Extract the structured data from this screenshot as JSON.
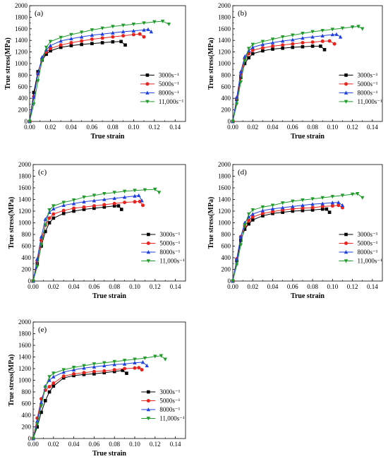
{
  "figure": {
    "xlabel": "True strain",
    "ylabel": "True stress(MPa)"
  },
  "legend": [
    {
      "name": "3000s⁻¹",
      "color": "#000000",
      "marker": "square"
    },
    {
      "name": "5000s⁻¹",
      "color": "#e8231e",
      "marker": "circle"
    },
    {
      "name": "8000s⁻¹",
      "color": "#1f3fe0",
      "marker": "triangle"
    },
    {
      "name": "11,000s⁻¹",
      "color": "#1f9b2a",
      "marker": "triangle-down"
    }
  ],
  "chart_data": [
    {
      "type": "line",
      "panel": "(a)",
      "xlabel": "True strain",
      "ylabel": "True stress(MPa)",
      "xlim": [
        0,
        0.15
      ],
      "ylim": [
        0,
        2000
      ],
      "x_ticks": [
        "0.00",
        "0.02",
        "0.04",
        "0.06",
        "0.08",
        "0.10",
        "0.12",
        "0.14"
      ],
      "y_ticks": [
        "0",
        "200",
        "400",
        "600",
        "800",
        "1000",
        "1200",
        "1400",
        "1600",
        "1800",
        "2000"
      ],
      "series": [
        {
          "name": "3000s⁻¹",
          "x": [
            0,
            0.004,
            0.008,
            0.012,
            0.016,
            0.02,
            0.03,
            0.04,
            0.05,
            0.06,
            0.07,
            0.08,
            0.088,
            0.092
          ],
          "y": [
            0,
            500,
            860,
            1060,
            1160,
            1220,
            1280,
            1310,
            1330,
            1345,
            1360,
            1375,
            1380,
            1320
          ]
        },
        {
          "name": "5000s⁻¹",
          "x": [
            0,
            0.004,
            0.008,
            0.012,
            0.016,
            0.02,
            0.03,
            0.04,
            0.05,
            0.06,
            0.07,
            0.08,
            0.09,
            0.1,
            0.106,
            0.11
          ],
          "y": [
            0,
            430,
            820,
            1080,
            1200,
            1260,
            1320,
            1360,
            1390,
            1420,
            1440,
            1460,
            1480,
            1500,
            1510,
            1460
          ]
        },
        {
          "name": "8000s⁻¹",
          "x": [
            0,
            0.004,
            0.008,
            0.012,
            0.016,
            0.02,
            0.03,
            0.04,
            0.05,
            0.06,
            0.07,
            0.08,
            0.09,
            0.1,
            0.11,
            0.114,
            0.117
          ],
          "y": [
            0,
            420,
            830,
            1110,
            1240,
            1310,
            1390,
            1430,
            1460,
            1490,
            1510,
            1530,
            1550,
            1565,
            1580,
            1590,
            1550
          ]
        },
        {
          "name": "11,000s⁻¹",
          "x": [
            0,
            0.004,
            0.008,
            0.012,
            0.016,
            0.02,
            0.03,
            0.04,
            0.05,
            0.06,
            0.07,
            0.08,
            0.09,
            0.1,
            0.11,
            0.12,
            0.128,
            0.134
          ],
          "y": [
            0,
            300,
            700,
            1050,
            1280,
            1380,
            1450,
            1500,
            1540,
            1580,
            1610,
            1640,
            1660,
            1680,
            1700,
            1720,
            1730,
            1680
          ]
        }
      ]
    },
    {
      "type": "line",
      "panel": "(b)",
      "xlabel": "True strain",
      "ylabel": "True stress(MPa)",
      "xlim": [
        0,
        0.15
      ],
      "ylim": [
        0,
        2000
      ],
      "x_ticks": [
        "0.00",
        "0.02",
        "0.04",
        "0.06",
        "0.08",
        "0.10",
        "0.12",
        "0.14"
      ],
      "y_ticks": [
        "0",
        "200",
        "400",
        "600",
        "800",
        "1000",
        "1200",
        "1400",
        "1600",
        "1800",
        "2000"
      ],
      "series": [
        {
          "name": "3000s⁻¹",
          "x": [
            0,
            0.004,
            0.008,
            0.012,
            0.016,
            0.02,
            0.03,
            0.04,
            0.05,
            0.06,
            0.07,
            0.08,
            0.088,
            0.092
          ],
          "y": [
            0,
            380,
            760,
            1000,
            1100,
            1170,
            1220,
            1250,
            1265,
            1280,
            1290,
            1300,
            1300,
            1240
          ]
        },
        {
          "name": "5000s⁻¹",
          "x": [
            0,
            0.004,
            0.008,
            0.012,
            0.016,
            0.02,
            0.03,
            0.04,
            0.05,
            0.06,
            0.07,
            0.08,
            0.09,
            0.097,
            0.102
          ],
          "y": [
            0,
            400,
            800,
            1080,
            1170,
            1230,
            1270,
            1300,
            1320,
            1340,
            1360,
            1370,
            1385,
            1390,
            1340
          ]
        },
        {
          "name": "8000s⁻¹",
          "x": [
            0,
            0.004,
            0.008,
            0.012,
            0.016,
            0.02,
            0.03,
            0.04,
            0.05,
            0.06,
            0.07,
            0.08,
            0.09,
            0.1,
            0.104,
            0.108
          ],
          "y": [
            0,
            420,
            860,
            1120,
            1220,
            1280,
            1330,
            1360,
            1390,
            1410,
            1440,
            1460,
            1480,
            1500,
            1505,
            1460
          ]
        },
        {
          "name": "11,000s⁻¹",
          "x": [
            0,
            0.004,
            0.008,
            0.012,
            0.016,
            0.02,
            0.03,
            0.04,
            0.05,
            0.06,
            0.07,
            0.08,
            0.09,
            0.1,
            0.11,
            0.12,
            0.126,
            0.13
          ],
          "y": [
            0,
            300,
            680,
            1050,
            1260,
            1330,
            1380,
            1420,
            1460,
            1490,
            1520,
            1550,
            1570,
            1590,
            1610,
            1630,
            1640,
            1600
          ]
        }
      ]
    },
    {
      "type": "line",
      "panel": "(c)",
      "xlabel": "True strain",
      "ylabel": "True stress(MPa)",
      "xlim": [
        0,
        0.15
      ],
      "ylim": [
        0,
        2000
      ],
      "x_ticks": [
        "0.00",
        "0.02",
        "0.04",
        "0.06",
        "0.08",
        "0.10",
        "0.12",
        "0.14"
      ],
      "y_ticks": [
        "0",
        "200",
        "400",
        "600",
        "800",
        "1000",
        "1200",
        "1400",
        "1600",
        "1800",
        "2000"
      ],
      "series": [
        {
          "name": "3000s⁻¹",
          "x": [
            0,
            0.004,
            0.008,
            0.012,
            0.016,
            0.02,
            0.03,
            0.04,
            0.05,
            0.06,
            0.07,
            0.08,
            0.084,
            0.087
          ],
          "y": [
            0,
            300,
            600,
            850,
            1000,
            1080,
            1160,
            1200,
            1230,
            1250,
            1270,
            1290,
            1290,
            1230
          ]
        },
        {
          "name": "5000s⁻¹",
          "x": [
            0,
            0.004,
            0.008,
            0.012,
            0.016,
            0.02,
            0.03,
            0.04,
            0.05,
            0.06,
            0.07,
            0.08,
            0.09,
            0.1,
            0.105,
            0.108
          ],
          "y": [
            0,
            350,
            700,
            960,
            1080,
            1150,
            1210,
            1250,
            1270,
            1290,
            1310,
            1330,
            1350,
            1360,
            1365,
            1300
          ]
        },
        {
          "name": "8000s⁻¹",
          "x": [
            0,
            0.004,
            0.008,
            0.012,
            0.016,
            0.02,
            0.03,
            0.04,
            0.05,
            0.06,
            0.07,
            0.08,
            0.09,
            0.1,
            0.104,
            0.107
          ],
          "y": [
            0,
            380,
            760,
            1060,
            1180,
            1240,
            1300,
            1330,
            1360,
            1380,
            1400,
            1420,
            1440,
            1460,
            1470,
            1380
          ]
        },
        {
          "name": "11,000s⁻¹",
          "x": [
            0,
            0.004,
            0.008,
            0.012,
            0.016,
            0.02,
            0.03,
            0.04,
            0.05,
            0.06,
            0.07,
            0.08,
            0.09,
            0.1,
            0.11,
            0.12,
            0.124
          ],
          "y": [
            0,
            250,
            620,
            960,
            1220,
            1290,
            1350,
            1390,
            1440,
            1470,
            1500,
            1520,
            1540,
            1555,
            1565,
            1575,
            1520
          ]
        }
      ]
    },
    {
      "type": "line",
      "panel": "(d)",
      "xlabel": "True strain",
      "ylabel": "True stress(MPa)",
      "xlim": [
        0,
        0.15
      ],
      "ylim": [
        0,
        2000
      ],
      "x_ticks": [
        "0.00",
        "0.02",
        "0.04",
        "0.06",
        "0.08",
        "0.10",
        "0.12",
        "0.14"
      ],
      "y_ticks": [
        "0",
        "200",
        "400",
        "600",
        "800",
        "1000",
        "1200",
        "1400",
        "1600",
        "1800",
        "2000"
      ],
      "series": [
        {
          "name": "3000s⁻¹",
          "x": [
            0,
            0.004,
            0.008,
            0.012,
            0.016,
            0.02,
            0.03,
            0.04,
            0.05,
            0.06,
            0.07,
            0.08,
            0.09,
            0.094,
            0.097
          ],
          "y": [
            0,
            350,
            700,
            890,
            980,
            1050,
            1120,
            1160,
            1180,
            1200,
            1210,
            1220,
            1235,
            1235,
            1180
          ]
        },
        {
          "name": "5000s⁻¹",
          "x": [
            0,
            0.004,
            0.008,
            0.012,
            0.016,
            0.02,
            0.03,
            0.04,
            0.05,
            0.06,
            0.07,
            0.08,
            0.09,
            0.1,
            0.106,
            0.11
          ],
          "y": [
            0,
            380,
            760,
            950,
            1040,
            1100,
            1160,
            1190,
            1220,
            1240,
            1250,
            1260,
            1280,
            1290,
            1300,
            1260
          ]
        },
        {
          "name": "8000s⁻¹",
          "x": [
            0,
            0.004,
            0.008,
            0.012,
            0.016,
            0.02,
            0.03,
            0.04,
            0.05,
            0.06,
            0.07,
            0.08,
            0.09,
            0.1,
            0.106,
            0.11
          ],
          "y": [
            0,
            380,
            760,
            1000,
            1100,
            1150,
            1210,
            1240,
            1260,
            1280,
            1300,
            1320,
            1330,
            1345,
            1350,
            1300
          ]
        },
        {
          "name": "11,000s⁻¹",
          "x": [
            0,
            0.004,
            0.008,
            0.012,
            0.016,
            0.02,
            0.03,
            0.04,
            0.05,
            0.06,
            0.07,
            0.08,
            0.09,
            0.1,
            0.11,
            0.12,
            0.125,
            0.13
          ],
          "y": [
            0,
            280,
            620,
            960,
            1150,
            1220,
            1270,
            1300,
            1340,
            1370,
            1390,
            1410,
            1430,
            1450,
            1470,
            1490,
            1500,
            1430
          ]
        }
      ]
    },
    {
      "type": "line",
      "panel": "(e)",
      "xlabel": "True strain",
      "ylabel": "True stress(MPa)",
      "xlim": [
        0,
        0.15
      ],
      "ylim": [
        0,
        2000
      ],
      "x_ticks": [
        "0.00",
        "0.02",
        "0.04",
        "0.06",
        "0.08",
        "0.10",
        "0.12",
        "0.14"
      ],
      "y_ticks": [
        "0",
        "200",
        "400",
        "600",
        "800",
        "1000",
        "1200",
        "1400",
        "1600",
        "1800",
        "2000"
      ],
      "series": [
        {
          "name": "3000s⁻¹",
          "x": [
            0,
            0.004,
            0.008,
            0.012,
            0.016,
            0.02,
            0.03,
            0.04,
            0.05,
            0.06,
            0.07,
            0.08,
            0.088,
            0.092
          ],
          "y": [
            0,
            200,
            450,
            650,
            800,
            900,
            1040,
            1080,
            1100,
            1110,
            1130,
            1150,
            1170,
            1120
          ]
        },
        {
          "name": "5000s⁻¹",
          "x": [
            0,
            0.004,
            0.008,
            0.012,
            0.016,
            0.02,
            0.03,
            0.04,
            0.05,
            0.06,
            0.07,
            0.08,
            0.09,
            0.1,
            0.104,
            0.107
          ],
          "y": [
            0,
            350,
            680,
            830,
            890,
            950,
            1070,
            1110,
            1130,
            1150,
            1160,
            1180,
            1200,
            1210,
            1215,
            1180
          ]
        },
        {
          "name": "8000s⁻¹",
          "x": [
            0,
            0.004,
            0.008,
            0.012,
            0.016,
            0.02,
            0.03,
            0.04,
            0.05,
            0.06,
            0.07,
            0.08,
            0.09,
            0.1,
            0.108,
            0.112
          ],
          "y": [
            0,
            300,
            620,
            900,
            1000,
            1060,
            1140,
            1180,
            1210,
            1230,
            1250,
            1270,
            1280,
            1300,
            1310,
            1250
          ]
        },
        {
          "name": "11,000s⁻¹",
          "x": [
            0,
            0.004,
            0.008,
            0.012,
            0.016,
            0.02,
            0.03,
            0.04,
            0.05,
            0.06,
            0.07,
            0.08,
            0.09,
            0.1,
            0.11,
            0.12,
            0.126,
            0.13
          ],
          "y": [
            0,
            250,
            560,
            880,
            1060,
            1120,
            1180,
            1220,
            1250,
            1280,
            1300,
            1320,
            1340,
            1360,
            1380,
            1410,
            1420,
            1360
          ]
        }
      ]
    }
  ]
}
